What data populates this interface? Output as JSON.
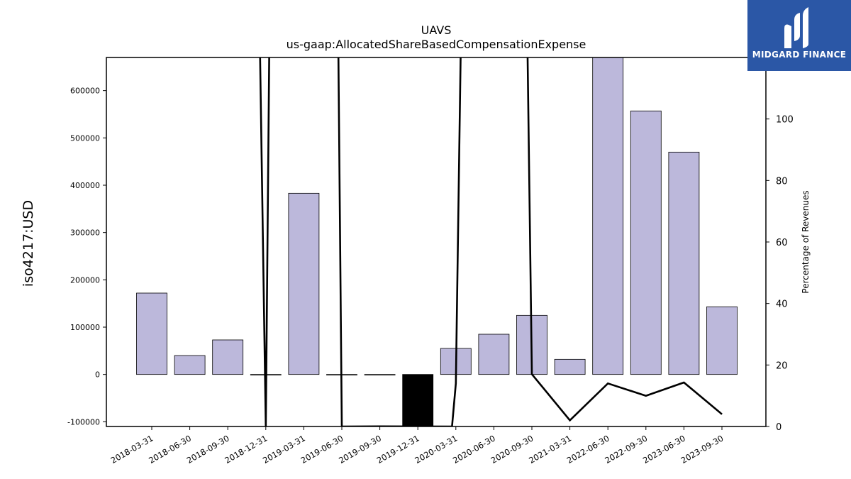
{
  "logo": {
    "text": "MIDGARD FINANCE",
    "bg_color": "#2b57a6"
  },
  "chart_data": {
    "type": "bar",
    "title": "UAVS",
    "subtitle": "us-gaap:AllocatedShareBasedCompensationExpense",
    "ylabel": "iso4217:USD",
    "y2label": "Percentage of Revenues",
    "ylim": [
      -110000,
      670000
    ],
    "y2lim": [
      0,
      120
    ],
    "yticks": [
      -100000,
      0,
      100000,
      200000,
      300000,
      400000,
      500000,
      600000
    ],
    "y2ticks": [
      0,
      20,
      40,
      60,
      80,
      100
    ],
    "categories": [
      "2018-03-31",
      "2018-06-30",
      "2018-09-30",
      "2018-12-31",
      "2019-03-31",
      "2019-06-30",
      "2019-09-30",
      "2019-12-31",
      "2020-03-31",
      "2020-06-30",
      "2020-09-30",
      "2021-03-31",
      "2022-06-30",
      "2022-09-30",
      "2023-06-30",
      "2023-09-30"
    ],
    "series": [
      {
        "kind": "bar",
        "values": [
          172000,
          40000,
          73000,
          -500,
          383000,
          -500,
          -500,
          -110000,
          55000,
          85000,
          125000,
          32000,
          670000,
          557000,
          470000,
          143000
        ],
        "colors": [
          "#bcb8db",
          "#bcb8db",
          "#bcb8db",
          "#bcb8db",
          "#bcb8db",
          "#bcb8db",
          "#bcb8db",
          "#000000",
          "#bcb8db",
          "#bcb8db",
          "#bcb8db",
          "#bcb8db",
          "#bcb8db",
          "#bcb8db",
          "#bcb8db",
          "#bcb8db"
        ]
      },
      {
        "kind": "line",
        "axis": "right",
        "color": "#000000",
        "values": [
          null,
          null,
          null,
          0,
          null,
          0,
          0.05,
          null,
          14,
          null,
          17,
          2,
          14,
          10,
          14.3,
          4
        ]
      }
    ],
    "line_offscreen_segments": [
      {
        "from": 2.75,
        "to_index": 3,
        "note": "enters from above"
      },
      {
        "from_index": 3,
        "to": 3.15,
        "note": "exits top"
      },
      {
        "from": 4.85,
        "to_index": 5
      },
      {
        "from_index": 7.9,
        "to_index": 8
      },
      {
        "from_index": 8,
        "to": 8.22
      },
      {
        "from": 9.8,
        "to_index": 10
      }
    ],
    "grid": false,
    "legend": "none"
  }
}
